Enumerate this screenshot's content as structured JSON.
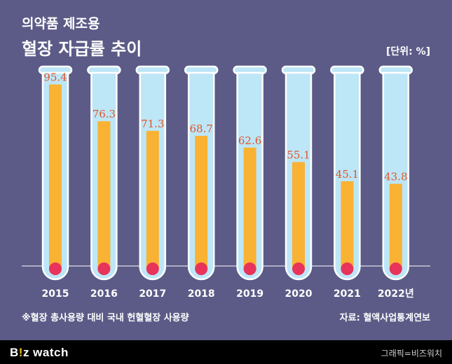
{
  "header": {
    "subtitle": "의약품 제조용",
    "title": "혈장 자급률 추이",
    "unit": "[단위: %]"
  },
  "footnote": "※혈장 총사용량 대비 국내 헌혈혈장 사용량",
  "source": "자료: 혈액사업통계연보",
  "footer": {
    "logo_b": "B",
    "logo_mark": "!",
    "logo_rest": "z watch",
    "credit": "그래픽=비즈워치"
  },
  "colors": {
    "background": "#5c5b87",
    "tube": "#bde6f7",
    "tube_border": "#ffffff",
    "bar": "#f9b233",
    "bulb": "#e8335a",
    "value_text": "#e0562a"
  },
  "chart_data": {
    "type": "bar",
    "title": "혈장 자급률 추이",
    "ylabel": "%",
    "xlabel": "",
    "ylim": [
      0,
      100
    ],
    "categories": [
      "2015",
      "2016",
      "2017",
      "2018",
      "2019",
      "2020",
      "2021",
      "2022년"
    ],
    "values": [
      95.4,
      76.3,
      71.3,
      68.7,
      62.6,
      55.1,
      45.1,
      43.8
    ],
    "value_labels": [
      "95.4",
      "76.3",
      "71.3",
      "68.7",
      "62.6",
      "55.1",
      "45.1",
      "43.8"
    ]
  }
}
